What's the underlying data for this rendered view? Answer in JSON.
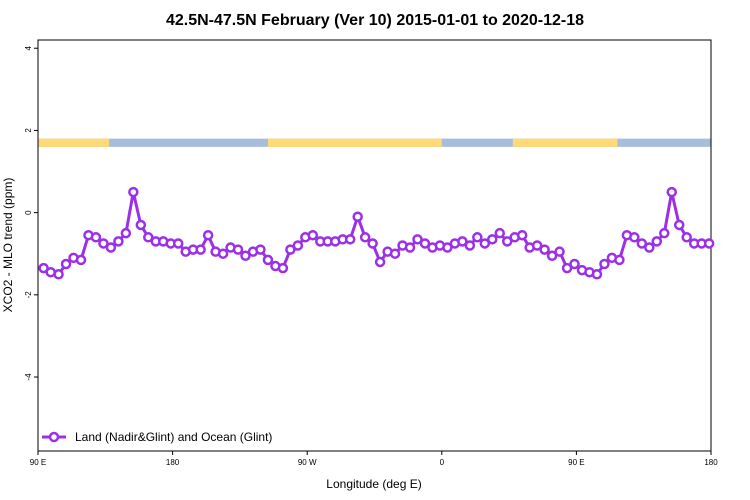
{
  "chart_data": {
    "type": "line",
    "title": "42.5N-47.5N February (Ver 10)   2015-01-01 to 2020-12-18",
    "xlabel": "Longitude (deg E)",
    "ylabel": "XCO2 - MLO trend (ppm)",
    "xlim": [
      90,
      450
    ],
    "ylim": [
      -5.8,
      4.2
    ],
    "x_ticks": [
      {
        "value": 90,
        "label": "90 E"
      },
      {
        "value": 162,
        "label": "180"
      },
      {
        "value": 234,
        "label": "90 W"
      },
      {
        "value": 306,
        "label": "0"
      },
      {
        "value": 378,
        "label": "90 E"
      },
      {
        "value": 450,
        "label": "180"
      }
    ],
    "y_ticks": [
      {
        "value": 4,
        "label": "4"
      },
      {
        "value": 2,
        "label": "2"
      },
      {
        "value": 0,
        "label": "0"
      },
      {
        "value": -2,
        "label": "-2"
      },
      {
        "value": -4,
        "label": "-4"
      }
    ],
    "legend": {
      "position": "bottom-left"
    },
    "series": [
      {
        "name": "Land (Nadir&Glint) and Ocean (Glint)",
        "color": "#9b30e8",
        "marker": "open-circle",
        "x": [
          93,
          96.8,
          101,
          105,
          109,
          113,
          117,
          121,
          125,
          129,
          133,
          137,
          141,
          145,
          149,
          153,
          157,
          161,
          165,
          169,
          173,
          177,
          181,
          185,
          189,
          193,
          197,
          201,
          205,
          209,
          213,
          217,
          221,
          225,
          229,
          233,
          237,
          241,
          245,
          249,
          253,
          257,
          261,
          265,
          269,
          273,
          277,
          281,
          285,
          289,
          293,
          297,
          301,
          305,
          309,
          313,
          317,
          321,
          325,
          329,
          333,
          337,
          341,
          345,
          349,
          353,
          357,
          361,
          365,
          369,
          373,
          377,
          381,
          385,
          389,
          393,
          397,
          401,
          405,
          409,
          413,
          417,
          421,
          425,
          429,
          433,
          437,
          441,
          445,
          449
        ],
        "y": [
          -1.35,
          -1.45,
          -1.5,
          -1.25,
          -1.1,
          -1.15,
          -0.55,
          -0.6,
          -0.75,
          -0.85,
          -0.7,
          -0.5,
          0.5,
          -0.3,
          -0.6,
          -0.7,
          -0.7,
          -0.75,
          -0.75,
          -0.95,
          -0.9,
          -0.9,
          -0.55,
          -0.95,
          -1.0,
          -0.85,
          -0.9,
          -1.05,
          -0.95,
          -0.9,
          -1.15,
          -1.3,
          -1.35,
          -0.9,
          -0.8,
          -0.6,
          -0.55,
          -0.7,
          -0.7,
          -0.7,
          -0.65,
          -0.65,
          -0.1,
          -0.6,
          -0.75,
          -1.2,
          -0.95,
          -1.0,
          -0.8,
          -0.85,
          -0.65,
          -0.75,
          -0.85,
          -0.8,
          -0.85,
          -0.75,
          -0.7,
          -0.8,
          -0.6,
          -0.75,
          -0.65,
          -0.5,
          -0.7,
          -0.6,
          -0.55,
          -0.85,
          -0.8,
          -0.9,
          -1.05,
          -0.95,
          -1.35,
          -1.25,
          -1.4,
          -1.45,
          -1.5,
          -1.25,
          -1.1,
          -1.15,
          -0.55,
          -0.6,
          -0.75,
          -0.85,
          -0.7,
          -0.5,
          0.5,
          -0.3,
          -0.6,
          -0.75,
          -0.75,
          -0.75
        ]
      }
    ],
    "land_ocean_strip": {
      "y_range": [
        1.6,
        1.8
      ],
      "land_color": "#fed975",
      "ocean_color": "#a6bddb",
      "land_segments": [
        [
          90,
          128
        ],
        [
          213,
          306
        ],
        [
          344,
          400
        ]
      ]
    }
  }
}
